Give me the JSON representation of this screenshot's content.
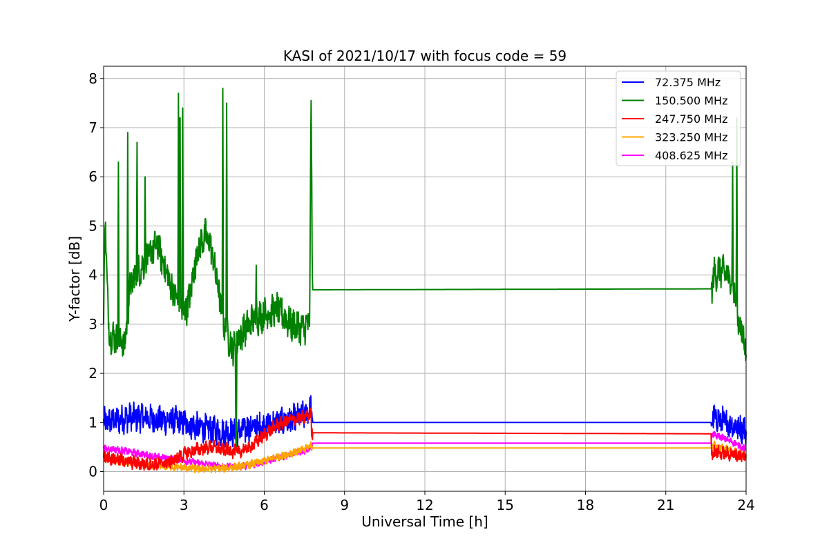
{
  "chart_data": {
    "type": "line",
    "title": "KASI of 2021/10/17 with focus code = 59",
    "xlabel": "Universal Time [h]",
    "ylabel": "Y-factor [dB]",
    "xlim": [
      0,
      24
    ],
    "ylim": [
      -0.4,
      8.25
    ],
    "xticks": [
      0,
      3,
      6,
      9,
      12,
      15,
      18,
      21,
      24
    ],
    "xtick_labels": [
      "0",
      "3",
      "6",
      "9",
      "12",
      "15",
      "18",
      "21",
      "24"
    ],
    "yticks": [
      0,
      1,
      2,
      3,
      4,
      5,
      6,
      7,
      8
    ],
    "ytick_labels": [
      "0",
      "1",
      "2",
      "3",
      "4",
      "5",
      "6",
      "7",
      "8"
    ],
    "grid": true,
    "legend_position": "top-right",
    "series": [
      {
        "name": "  72.375 MHz",
        "color": "#0000ff",
        "x": [
          0,
          0.5,
          1.0,
          1.5,
          2.0,
          2.5,
          3.0,
          3.5,
          4.0,
          4.5,
          5.0,
          5.5,
          6.0,
          6.5,
          7.0,
          7.5,
          7.75,
          7.76,
          22.7,
          22.71,
          23.0,
          23.5,
          24.0
        ],
        "y": [
          1.0,
          1.05,
          1.1,
          1.1,
          1.05,
          1.05,
          1.0,
          0.9,
          0.85,
          0.8,
          0.8,
          0.9,
          0.95,
          1.0,
          1.05,
          1.15,
          1.3,
          1.0,
          1.0,
          1.1,
          1.05,
          0.95,
          0.85
        ],
        "noise": 0.25
      },
      {
        "name": "150.500 MHz",
        "color": "#008000",
        "x": [
          0,
          0.05,
          0.2,
          0.5,
          0.8,
          1.0,
          1.2,
          1.5,
          1.8,
          2.0,
          2.2,
          2.5,
          2.8,
          3.0,
          3.2,
          3.5,
          3.8,
          4.0,
          4.2,
          4.5,
          4.8,
          5.0,
          5.3,
          5.6,
          6.0,
          6.5,
          7.0,
          7.5,
          7.7,
          7.75,
          7.8,
          22.7,
          22.8,
          23.0,
          23.3,
          23.5,
          23.7,
          24.0
        ],
        "y": [
          3.0,
          5.2,
          2.8,
          2.7,
          2.6,
          3.8,
          4.0,
          4.2,
          4.5,
          4.6,
          4.3,
          3.8,
          3.4,
          3.2,
          3.5,
          4.5,
          4.8,
          4.6,
          4.0,
          3.0,
          2.5,
          2.7,
          2.9,
          3.1,
          3.2,
          3.3,
          3.0,
          2.9,
          3.1,
          7.8,
          3.7,
          3.72,
          4.0,
          4.1,
          4.0,
          3.8,
          3.1,
          2.5
        ],
        "noise": 0.3,
        "spikes": [
          [
            0.55,
            6.3
          ],
          [
            0.9,
            6.9
          ],
          [
            1.25,
            6.7
          ],
          [
            1.55,
            6.0
          ],
          [
            2.05,
            4.8
          ],
          [
            2.8,
            7.7
          ],
          [
            2.85,
            7.2
          ],
          [
            2.95,
            7.4
          ],
          [
            4.45,
            7.8
          ],
          [
            4.6,
            7.5
          ],
          [
            4.95,
            0.5
          ],
          [
            5.7,
            4.2
          ],
          [
            23.5,
            6.3
          ],
          [
            23.65,
            7.2
          ]
        ]
      },
      {
        "name": "247.750 MHz",
        "color": "#ff0000",
        "x": [
          0,
          0.5,
          1.0,
          1.5,
          2.0,
          2.5,
          3.0,
          3.5,
          4.0,
          4.5,
          5.0,
          5.5,
          6.0,
          6.5,
          7.0,
          7.5,
          7.75,
          7.76,
          22.7,
          22.71,
          23.0,
          23.5,
          24.0
        ],
        "y": [
          0.3,
          0.25,
          0.2,
          0.15,
          0.15,
          0.2,
          0.35,
          0.45,
          0.5,
          0.45,
          0.4,
          0.5,
          0.75,
          0.95,
          1.05,
          1.1,
          1.2,
          0.79,
          0.77,
          0.4,
          0.38,
          0.35,
          0.3
        ],
        "noise": 0.12
      },
      {
        "name": "323.250 MHz",
        "color": "#ffa500",
        "x": [
          0,
          0.5,
          1.0,
          1.5,
          2.0,
          2.5,
          3.0,
          3.5,
          4.0,
          4.5,
          5.0,
          5.5,
          6.0,
          6.5,
          7.0,
          7.5,
          7.75,
          7.76,
          22.7,
          22.71,
          23.0,
          23.5,
          24.0
        ],
        "y": [
          0.25,
          0.22,
          0.18,
          0.15,
          0.12,
          0.1,
          0.08,
          0.06,
          0.06,
          0.07,
          0.1,
          0.15,
          0.22,
          0.3,
          0.38,
          0.45,
          0.55,
          0.48,
          0.48,
          0.55,
          0.5,
          0.42,
          0.32
        ],
        "noise": 0.07
      },
      {
        "name": "408.625 MHz",
        "color": "#ff00ff",
        "x": [
          0,
          0.5,
          1.0,
          1.5,
          2.0,
          2.5,
          3.0,
          3.5,
          4.0,
          4.5,
          5.0,
          5.5,
          6.0,
          6.5,
          7.0,
          7.5,
          7.75,
          7.76,
          22.7,
          22.71,
          23.0,
          23.5,
          24.0
        ],
        "y": [
          0.47,
          0.45,
          0.4,
          0.35,
          0.3,
          0.27,
          0.22,
          0.18,
          0.14,
          0.11,
          0.1,
          0.13,
          0.2,
          0.28,
          0.35,
          0.42,
          0.5,
          0.58,
          0.58,
          0.75,
          0.72,
          0.6,
          0.45
        ],
        "noise": 0.06
      }
    ]
  }
}
